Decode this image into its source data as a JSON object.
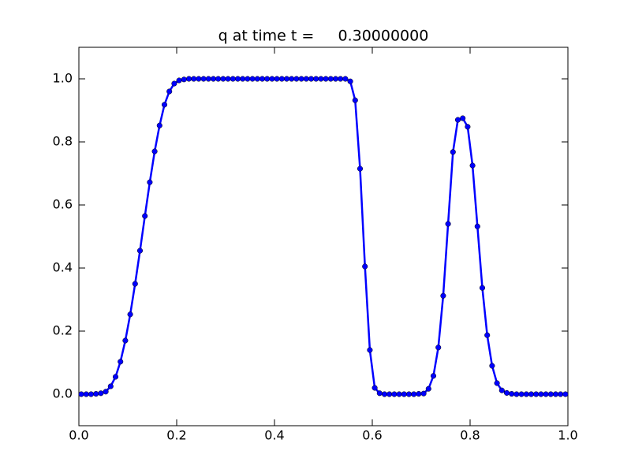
{
  "chart_data": {
    "type": "line",
    "title": "q at time t =     0.30000000",
    "x": [
      0.005,
      0.015,
      0.025,
      0.035,
      0.045,
      0.055,
      0.065,
      0.075,
      0.085,
      0.095,
      0.105,
      0.115,
      0.125,
      0.135,
      0.145,
      0.155,
      0.165,
      0.175,
      0.185,
      0.195,
      0.205,
      0.215,
      0.225,
      0.235,
      0.245,
      0.255,
      0.265,
      0.275,
      0.285,
      0.295,
      0.305,
      0.315,
      0.325,
      0.335,
      0.345,
      0.355,
      0.365,
      0.375,
      0.385,
      0.395,
      0.405,
      0.415,
      0.425,
      0.435,
      0.445,
      0.455,
      0.465,
      0.475,
      0.485,
      0.495,
      0.505,
      0.515,
      0.525,
      0.535,
      0.545,
      0.555,
      0.565,
      0.575,
      0.585,
      0.595,
      0.605,
      0.615,
      0.625,
      0.635,
      0.645,
      0.655,
      0.665,
      0.675,
      0.685,
      0.695,
      0.705,
      0.715,
      0.725,
      0.735,
      0.745,
      0.755,
      0.765,
      0.775,
      0.785,
      0.795,
      0.805,
      0.815,
      0.825,
      0.835,
      0.845,
      0.855,
      0.865,
      0.875,
      0.885,
      0.895,
      0.905,
      0.915,
      0.925,
      0.935,
      0.945,
      0.955,
      0.965,
      0.975,
      0.985,
      0.995
    ],
    "series": [
      {
        "color": "#0000ff",
        "values": [
          0,
          0,
          0,
          0.001,
          0.003,
          0.008,
          0.025,
          0.055,
          0.103,
          0.17,
          0.253,
          0.35,
          0.455,
          0.565,
          0.672,
          0.77,
          0.852,
          0.918,
          0.96,
          0.985,
          0.995,
          0.998,
          1,
          1,
          1,
          1,
          1,
          1,
          1,
          1,
          1,
          1,
          1,
          1,
          1,
          1,
          1,
          1,
          1,
          1,
          1,
          1,
          1,
          1,
          1,
          1,
          1,
          1,
          1,
          1,
          1,
          1,
          1,
          1,
          1,
          0.992,
          0.932,
          0.715,
          0.405,
          0.14,
          0.02,
          0.003,
          0,
          0,
          0,
          0,
          0,
          0,
          0,
          0.001,
          0.002,
          0.017,
          0.058,
          0.148,
          0.312,
          0.54,
          0.768,
          0.87,
          0.875,
          0.848,
          0.725,
          0.532,
          0.337,
          0.187,
          0.09,
          0.035,
          0.012,
          0.004,
          0.001,
          0,
          0,
          0,
          0,
          0,
          0,
          0,
          0,
          0,
          0,
          0
        ]
      }
    ],
    "xlim": [
      0,
      1
    ],
    "ylim": [
      -0.1,
      1.1
    ],
    "xticks": [
      {
        "value": 0,
        "label": "0.0"
      },
      0.2,
      0.4,
      0.6,
      0.8,
      {
        "value": 1,
        "label": "1.0"
      }
    ],
    "yticks": [
      {
        "value": 0,
        "label": "0.0"
      },
      0.2,
      0.4,
      0.6,
      0.8,
      {
        "value": 1,
        "label": "1.0"
      }
    ],
    "grid": false
  }
}
